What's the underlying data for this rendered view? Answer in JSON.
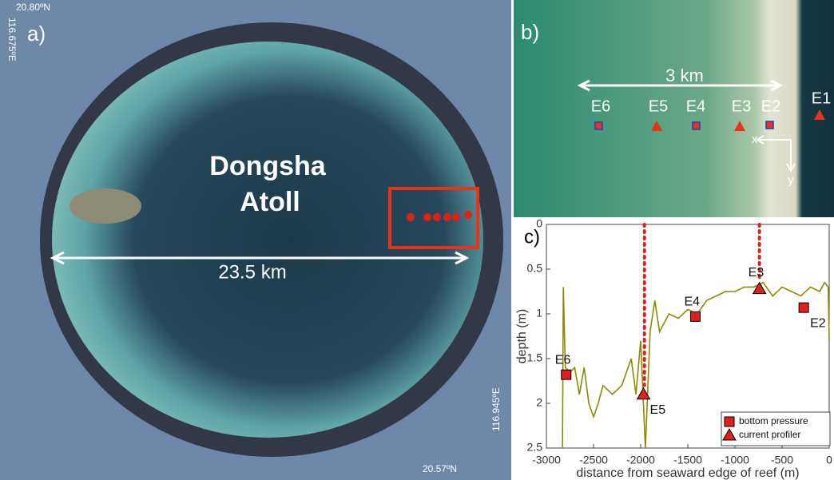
{
  "panel_a": {
    "label": "a)",
    "lat_top": "20.80ºN",
    "lon_left": "116.675ºE",
    "name_line1": "Dongsha",
    "name_line2": "Atoll",
    "scale": "23.5 km",
    "lon_right": "116.945ºE",
    "lat_bottom": "20.57ºN"
  },
  "panel_b": {
    "label": "b)",
    "scale": "3 km",
    "stations": [
      "E6",
      "E5",
      "E4",
      "E3",
      "E2",
      "E1"
    ],
    "axis_x": "x",
    "axis_y": "y"
  },
  "chart_data": {
    "type": "line",
    "label": "c)",
    "xlabel": "distance from seaward edge of reef (m)",
    "ylabel": "depth (m)",
    "xlim": [
      -3000,
      0
    ],
    "ylim": [
      0,
      2.5
    ],
    "y_reversed": true,
    "xticks": [
      -3000,
      -2500,
      -2000,
      -1500,
      -1000,
      -500,
      0
    ],
    "yticks": [
      0,
      0.5,
      1,
      1.5,
      2,
      2.5
    ],
    "color": "#8b8b00",
    "x": [
      -2830,
      -2820,
      -2800,
      -2750,
      -2700,
      -2650,
      -2600,
      -2550,
      -2500,
      -2450,
      -2400,
      -2300,
      -2200,
      -2100,
      -2050,
      -2000,
      -1950,
      -1900,
      -1850,
      -1800,
      -1700,
      -1600,
      -1500,
      -1400,
      -1300,
      -1200,
      -1100,
      -1000,
      -900,
      -800,
      -700,
      -600,
      -500,
      -400,
      -300,
      -200,
      -100,
      -50,
      -10,
      0
    ],
    "values": [
      2.5,
      0.7,
      1.6,
      1.65,
      1.6,
      1.9,
      1.6,
      2.0,
      2.15,
      2.0,
      1.8,
      1.9,
      1.8,
      1.5,
      1.9,
      1.3,
      2.5,
      1.2,
      0.85,
      1.2,
      1.0,
      1.05,
      0.95,
      1.0,
      0.85,
      0.8,
      0.75,
      0.75,
      0.7,
      0.7,
      0.65,
      0.8,
      0.7,
      0.75,
      0.8,
      0.7,
      0.75,
      0.65,
      0.7,
      1.3
    ],
    "vlines": [
      {
        "x": -1960,
        "depth": 1.8
      },
      {
        "x": -740,
        "depth": 0.62
      }
    ],
    "marker_color": "#e02020",
    "stations": [
      {
        "label": "E6",
        "x": -2790,
        "depth": 1.68,
        "marker": "square"
      },
      {
        "label": "E5",
        "x": -1970,
        "depth": 1.9,
        "marker": "triangle"
      },
      {
        "label": "E4",
        "x": -1420,
        "depth": 1.03,
        "marker": "square"
      },
      {
        "label": "E3",
        "x": -740,
        "depth": 0.72,
        "marker": "triangle"
      },
      {
        "label": "E2",
        "x": -270,
        "depth": 0.93,
        "marker": "square"
      }
    ],
    "legend": [
      {
        "label": "bottom pressure",
        "marker": "square"
      },
      {
        "label": "current profiler",
        "marker": "triangle"
      }
    ]
  }
}
